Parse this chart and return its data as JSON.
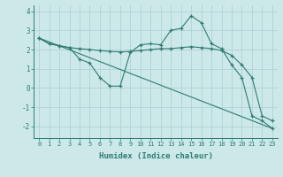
{
  "xlabel": "Humidex (Indice chaleur)",
  "bg_color": "#cce8e8",
  "line_color": "#2e7d6e",
  "grid_color": "#aacfcf",
  "xlim": [
    -0.5,
    23.5
  ],
  "ylim": [
    -2.6,
    4.3
  ],
  "yticks": [
    -2,
    -1,
    0,
    1,
    2,
    3,
    4
  ],
  "xticks": [
    0,
    1,
    2,
    3,
    4,
    5,
    6,
    7,
    8,
    9,
    10,
    11,
    12,
    13,
    14,
    15,
    16,
    17,
    18,
    19,
    20,
    21,
    22,
    23
  ],
  "line1_x": [
    0,
    1,
    2,
    3,
    4,
    5,
    6,
    7,
    8,
    9,
    10,
    11,
    12,
    13,
    14,
    15,
    16,
    17,
    18,
    19,
    20,
    21,
    22,
    23
  ],
  "line1_y": [
    2.6,
    2.3,
    2.2,
    2.1,
    2.05,
    2.0,
    1.95,
    1.9,
    1.88,
    1.9,
    1.95,
    2.0,
    2.05,
    2.05,
    2.1,
    2.15,
    2.1,
    2.05,
    1.95,
    1.7,
    1.2,
    0.55,
    -1.45,
    -1.7
  ],
  "line2_x": [
    0,
    1,
    2,
    3,
    4,
    5,
    6,
    7,
    8,
    9,
    10,
    11,
    12,
    13,
    14,
    15,
    16,
    17,
    18,
    19,
    20,
    21,
    22,
    23
  ],
  "line2_y": [
    2.6,
    2.3,
    2.2,
    2.1,
    1.5,
    1.3,
    0.55,
    0.1,
    0.1,
    1.85,
    2.25,
    2.3,
    2.25,
    3.0,
    3.1,
    3.75,
    3.4,
    2.3,
    2.05,
    1.2,
    0.55,
    -1.45,
    -1.7,
    -2.1
  ],
  "line3_x": [
    0,
    23
  ],
  "line3_y": [
    2.6,
    -2.1
  ]
}
